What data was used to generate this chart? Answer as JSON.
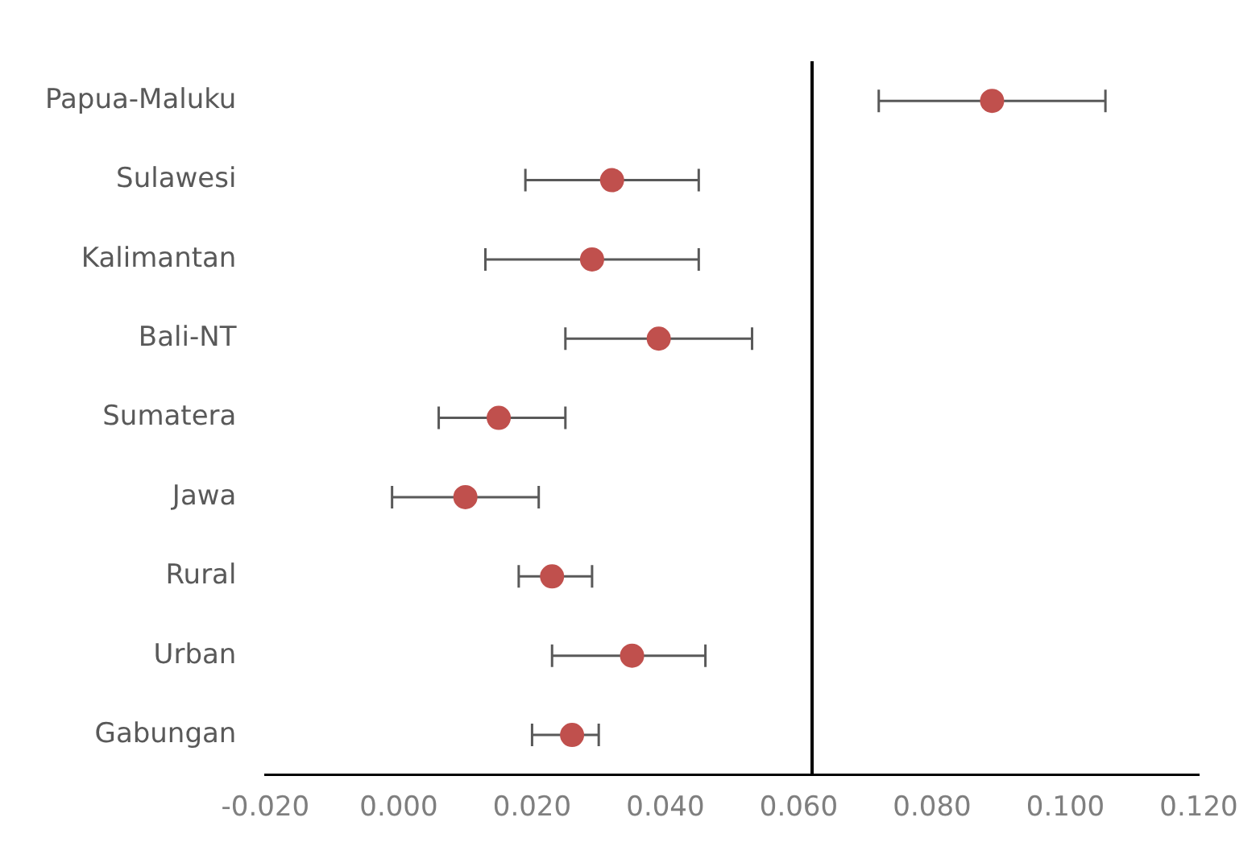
{
  "chart_data": {
    "type": "scatter",
    "orientation": "horizontal",
    "categories": [
      "Papua-Maluku",
      "Sulawesi",
      "Kalimantan",
      "Bali-NT",
      "Sumatera",
      "Jawa",
      "Rural",
      "Urban",
      "Gabungan"
    ],
    "series": [
      {
        "color": "#c0504d",
        "values": [
          0.089,
          0.032,
          0.029,
          0.039,
          0.015,
          0.01,
          0.023,
          0.035,
          0.026
        ],
        "errors": [
          [
            0.072,
            0.106
          ],
          [
            0.019,
            0.045
          ],
          [
            0.013,
            0.045
          ],
          [
            0.025,
            0.053
          ],
          [
            0.006,
            0.025
          ],
          [
            -0.001,
            0.021
          ],
          [
            0.018,
            0.029
          ],
          [
            0.023,
            0.046
          ],
          [
            0.02,
            0.03
          ]
        ]
      }
    ],
    "xlim": [
      -0.02,
      0.12
    ],
    "xticks": [
      {
        "value": -0.02,
        "label": "-0.020"
      },
      {
        "value": 0,
        "label": "0.000"
      },
      {
        "value": 0.02,
        "label": "0.020"
      },
      {
        "value": 0.04,
        "label": "0.040"
      },
      {
        "value": 0.06,
        "label": "0.060"
      },
      {
        "value": 0.08,
        "label": "0.080"
      },
      {
        "value": 0.1,
        "label": "0.100"
      },
      {
        "value": 0.12,
        "label": "0.120"
      }
    ],
    "ref_lines": [
      {
        "axis": "x",
        "value": 0.062,
        "color": "#000000"
      }
    ],
    "marker": "circle",
    "grid": false,
    "legend": false
  }
}
